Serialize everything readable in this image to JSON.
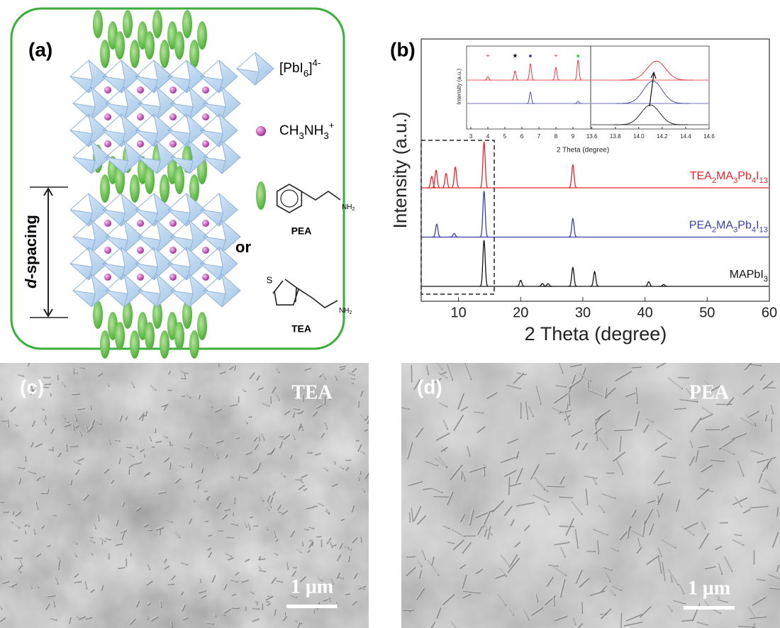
{
  "panels": {
    "a": {
      "label": "(a)",
      "legend": [
        "[PbI6]4-",
        "CH3NH3+"
      ],
      "pea": {
        "name": "PEA",
        "group": "NH2"
      },
      "or": "or",
      "tea": {
        "name": "TEA",
        "group": "NH2",
        "atom": "S"
      },
      "d_spacing": {
        "italic": "d",
        "rest": "-spacing"
      }
    },
    "b": {
      "label": "(b)"
    },
    "c": {
      "label": "(c)",
      "sample": "TEA",
      "scale": "1 μm"
    },
    "d": {
      "label": "(d)",
      "sample": "PEA",
      "scale": "1 μm"
    }
  },
  "chart_data": [
    {
      "type": "spectrum",
      "xlabel": "2 Theta (degree)",
      "ylabel": "Intensity (a.u.)",
      "xlim": [
        4,
        60
      ],
      "xticks": [
        10,
        20,
        30,
        40,
        50,
        60
      ],
      "series": [
        {
          "name": "TEA2MA3Pb4I13",
          "color": "#e8252a",
          "x": [
            5.7,
            6.4,
            8,
            9.5,
            14.1,
            28.4
          ],
          "values": [
            25,
            38,
            31,
            45,
            100,
            50
          ]
        },
        {
          "name": "PEA2MA3Pb4I13",
          "color": "#3a3fa6",
          "x": [
            6.5,
            9.3,
            14.1,
            28.4
          ],
          "values": [
            28,
            8,
            100,
            40
          ]
        },
        {
          "name": "MAPbI3",
          "color": "#111111",
          "x": [
            14.1,
            20,
            23.5,
            24.4,
            28.4,
            31.9,
            40.6,
            43
          ],
          "values": [
            100,
            13,
            6,
            6,
            41,
            32,
            10,
            4
          ]
        }
      ]
    },
    {
      "type": "spectrum",
      "xlabel": "2 Theta (degree)",
      "ylabel": "Intensity (a.u.)",
      "xlim": [
        2.75,
        10.04
      ],
      "xticks": [
        3,
        4,
        5,
        6,
        7,
        8,
        9
      ],
      "series": [
        {
          "color": "#e8252a",
          "x": [
            4,
            5.6,
            6.5,
            8,
            9.3
          ],
          "values": [
            18,
            46,
            82,
            64,
            100
          ]
        },
        {
          "color": "#3a3fa6",
          "x": [
            6.5,
            9.3
          ],
          "values": [
            57,
            11
          ]
        }
      ],
      "annotations": [
        {
          "x": 4,
          "text": "+",
          "color": "#e8252a"
        },
        {
          "x": 5.6,
          "text": "★",
          "color": "#111111"
        },
        {
          "x": 6.5,
          "text": "●",
          "color": "#3a3fa6"
        },
        {
          "x": 8,
          "text": "+",
          "color": "#e8252a"
        },
        {
          "x": 9.3,
          "text": "●",
          "color": "#3cc43c"
        }
      ]
    },
    {
      "type": "spectrum",
      "xlim": [
        13.59,
        14.6
      ],
      "xticks": [
        {
          "value": 13.6,
          "label": "13.6"
        },
        {
          "value": 13.8,
          "label": "13.8"
        },
        {
          "value": 14,
          "label": "14.0"
        },
        {
          "value": 14.2,
          "label": "14.2"
        },
        {
          "value": 14.4,
          "label": "14.4"
        },
        {
          "value": 14.6,
          "label": "14.6"
        }
      ],
      "series": [
        {
          "color": "#e8252a",
          "x": [
            14.15
          ],
          "values": [
            96
          ]
        },
        {
          "color": "#3a3fa6",
          "x": [
            14.12
          ],
          "values": [
            114
          ]
        },
        {
          "color": "#111111",
          "x": [
            14.1
          ],
          "values": [
            100
          ]
        }
      ]
    }
  ]
}
